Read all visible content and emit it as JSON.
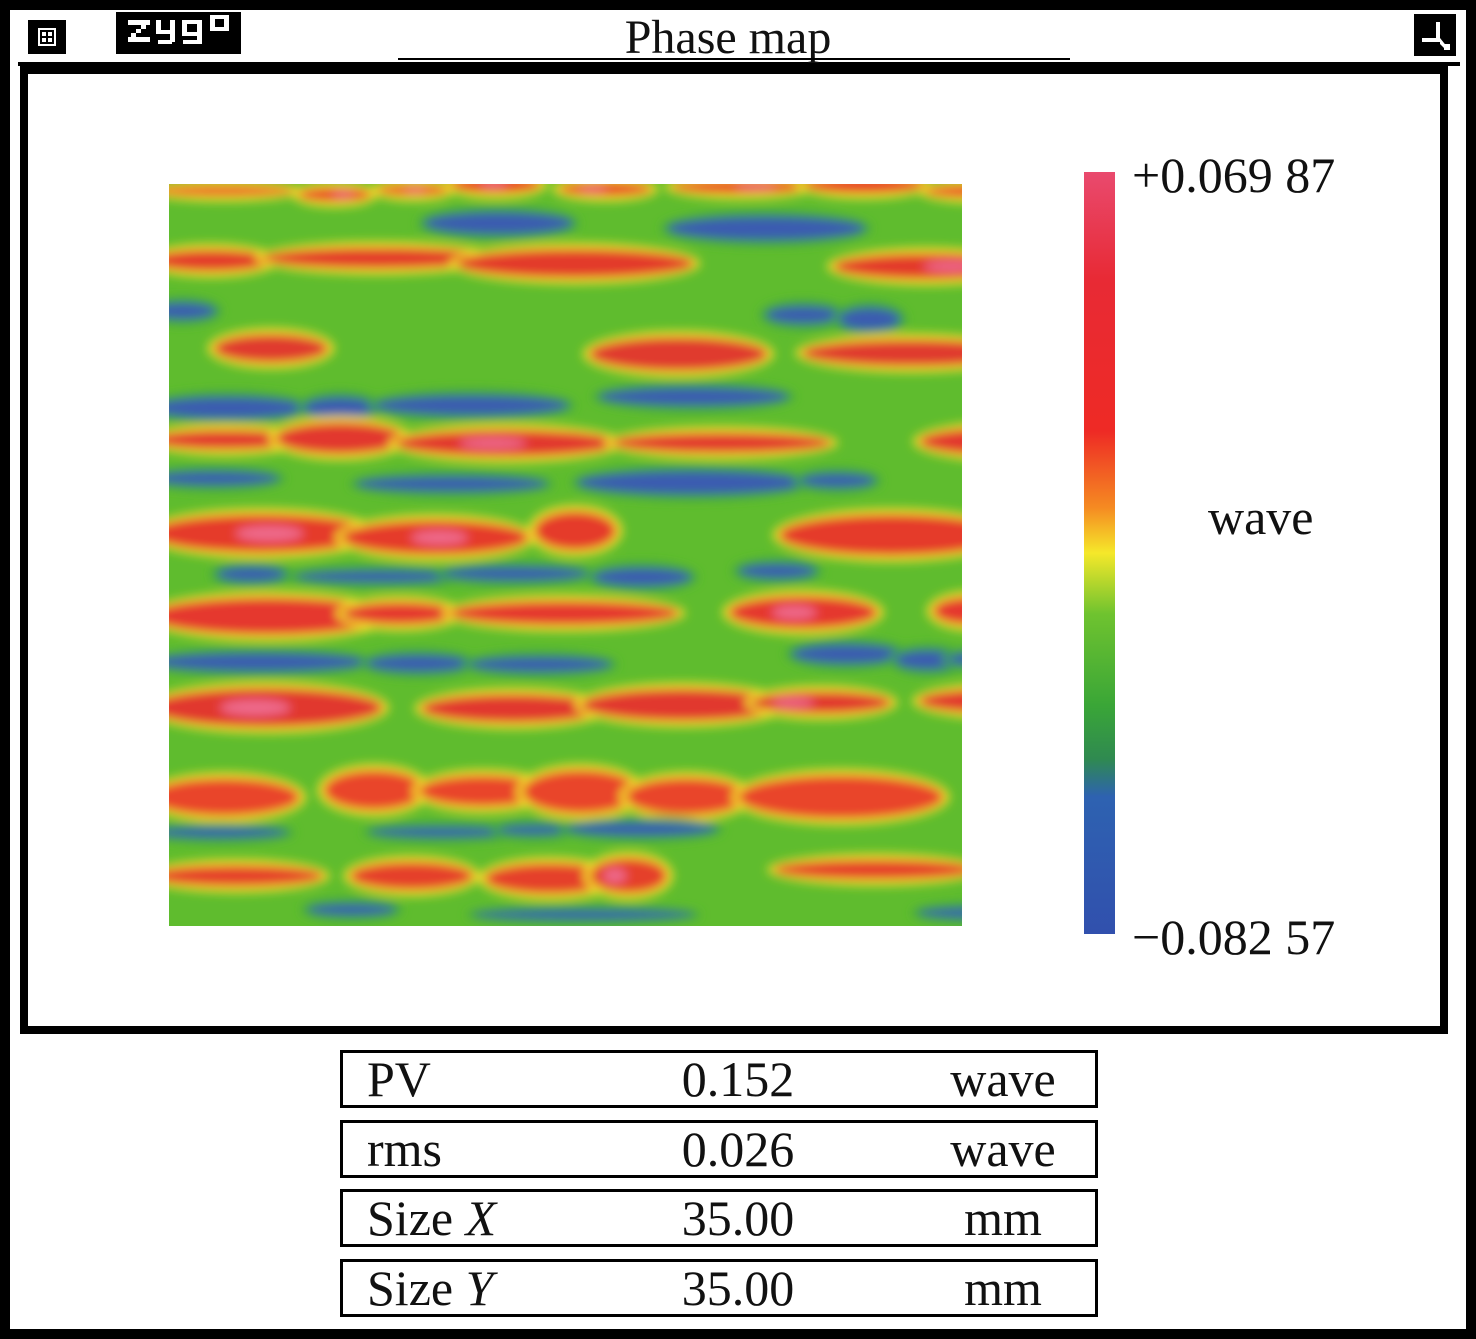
{
  "window": {
    "title": "Phase map",
    "logo_text": "ZYGO",
    "system_menu_icon": "system-menu-icon",
    "maximize_icon": "maximize-icon"
  },
  "colorbar": {
    "max_label": "+0.069 87",
    "min_label": "−0.082 57",
    "unit": "wave",
    "colors": [
      "#e94a6e",
      "#e82a35",
      "#f58a22",
      "#f5e82a",
      "#6fc32f",
      "#3aa637",
      "#2e62b1",
      "#3150ad"
    ]
  },
  "stats": [
    {
      "name": "PV",
      "value": "0.152",
      "unit": "wave"
    },
    {
      "name": "rms",
      "value": "0.026",
      "unit": "wave"
    },
    {
      "name": "Size ",
      "axis": "X",
      "value": "35.00",
      "unit": "mm"
    },
    {
      "name": "Size ",
      "axis": "Y",
      "value": "35.00",
      "unit": "mm"
    }
  ]
}
